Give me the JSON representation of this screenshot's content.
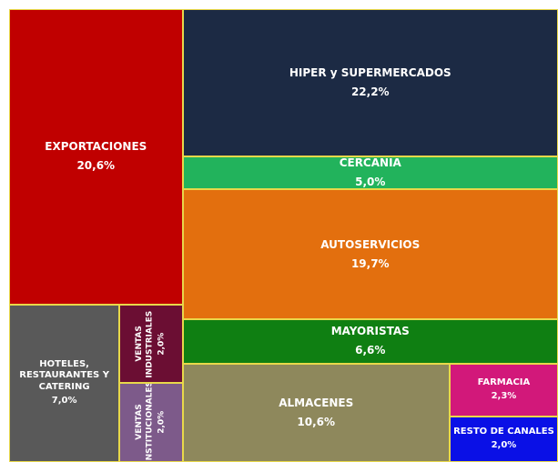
{
  "chart_data": {
    "type": "treemap",
    "categories": [
      "EXPORTACIONES",
      "HOTELES, RESTAURANTES Y CATERING",
      "VENTAS INDUSTRIALES",
      "VENTAS INSTITUCIONALES",
      "HIPER y SUPERMERCADOS",
      "CERCANIA",
      "AUTOSERVICIOS",
      "MAYORISTAS",
      "ALMACENES",
      "FARMACIA",
      "RESTO DE CANALES"
    ],
    "values": [
      20.6,
      7.0,
      2.0,
      2.0,
      22.2,
      5.0,
      19.7,
      6.6,
      10.6,
      2.3,
      2.0
    ],
    "value_labels": [
      "20,6%",
      "7,0%",
      "2,0%",
      "2,0%",
      "22,2%",
      "5,0%",
      "19,7%",
      "6,6%",
      "10,6%",
      "2,3%",
      "2,0%"
    ],
    "colors": [
      "#c00000",
      "#595959",
      "#6b0e33",
      "#7d5a8a",
      "#1c2a44",
      "#22b35c",
      "#e36f0e",
      "#0f7f12",
      "#8e885c",
      "#d2187a",
      "#0a10e6"
    ]
  }
}
